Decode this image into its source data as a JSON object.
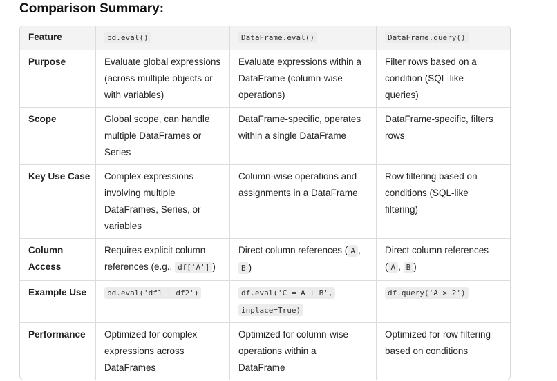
{
  "title": "Comparison Summary:",
  "table": {
    "header": [
      [
        [
          "Feature"
        ]
      ],
      [
        [
          {
            "code": "pd.eval()"
          }
        ]
      ],
      [
        [
          {
            "code": "DataFrame.eval()"
          }
        ]
      ],
      [
        [
          {
            "code": "DataFrame.query()"
          }
        ]
      ]
    ],
    "rows": [
      [
        [
          [
            "Purpose"
          ]
        ],
        [
          [
            "Evaluate global expressions"
          ],
          [
            "(across multiple objects or"
          ],
          [
            "with variables)"
          ]
        ],
        [
          [
            "Evaluate expressions within a"
          ],
          [
            "DataFrame (column-wise"
          ],
          [
            "operations)"
          ]
        ],
        [
          [
            "Filter rows based on a"
          ],
          [
            "condition (SQL-like"
          ],
          [
            "queries)"
          ]
        ]
      ],
      [
        [
          [
            "Scope"
          ]
        ],
        [
          [
            "Global scope, can handle"
          ],
          [
            "multiple DataFrames or"
          ],
          [
            "Series"
          ]
        ],
        [
          [
            "DataFrame-specific, operates"
          ],
          [
            "within a single DataFrame"
          ]
        ],
        [
          [
            "DataFrame-specific, filters"
          ],
          [
            "rows"
          ]
        ]
      ],
      [
        [
          [
            "Key Use Case"
          ]
        ],
        [
          [
            "Complex expressions"
          ],
          [
            "involving multiple"
          ],
          [
            "DataFrames, Series, or"
          ],
          [
            "variables"
          ]
        ],
        [
          [
            "Column-wise operations and"
          ],
          [
            "assignments in a DataFrame"
          ]
        ],
        [
          [
            "Row filtering based on"
          ],
          [
            "conditions (SQL-like"
          ],
          [
            "filtering)"
          ]
        ]
      ],
      [
        [
          [
            "Column"
          ],
          [
            "Access"
          ]
        ],
        [
          [
            "Requires explicit column"
          ],
          [
            "references (e.g., ",
            {
              "code": "df['A']"
            },
            ")"
          ]
        ],
        [
          [
            "Direct column references (",
            {
              "code": "A"
            },
            ","
          ],
          [
            {
              "code": "B"
            },
            ")"
          ]
        ],
        [
          [
            "Direct column references"
          ],
          [
            "(",
            {
              "code": "A"
            },
            ", ",
            {
              "code": "B"
            },
            ")"
          ]
        ]
      ],
      [
        [
          [
            "Example Use"
          ]
        ],
        [
          [
            {
              "code": "pd.eval('df1 + df2')"
            }
          ]
        ],
        [
          [
            {
              "code": "df.eval('C = A + B',"
            }
          ],
          [
            {
              "code": "inplace=True)"
            }
          ]
        ],
        [
          [
            {
              "code": "df.query('A > 2')"
            }
          ]
        ]
      ],
      [
        [
          [
            "Performance"
          ]
        ],
        [
          [
            "Optimized for complex"
          ],
          [
            "expressions across"
          ],
          [
            "DataFrames"
          ]
        ],
        [
          [
            "Optimized for column-wise"
          ],
          [
            "operations within a"
          ],
          [
            "DataFrame"
          ]
        ],
        [
          [
            "Optimized for row filtering"
          ],
          [
            "based on conditions"
          ]
        ]
      ]
    ]
  }
}
